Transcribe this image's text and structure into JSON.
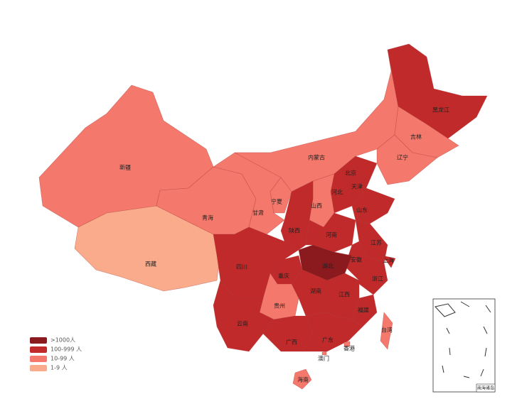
{
  "map": {
    "provinces": [
      {
        "name": "新疆",
        "color": "#f4796c"
      },
      {
        "name": "西藏",
        "color": "#f9ab8c"
      },
      {
        "name": "青海",
        "color": "#f4796c"
      },
      {
        "name": "甘肃",
        "color": "#f4796c"
      },
      {
        "name": "内蒙古",
        "color": "#f4796c"
      },
      {
        "name": "黑龙江",
        "color": "#c12a2a"
      },
      {
        "name": "吉林",
        "color": "#f4796c"
      },
      {
        "name": "辽宁",
        "color": "#f4796c"
      },
      {
        "name": "河北",
        "color": "#c12a2a"
      },
      {
        "name": "北京",
        "color": "#c12a2a"
      },
      {
        "name": "天津",
        "color": "#c12a2a"
      },
      {
        "name": "山西",
        "color": "#f4796c"
      },
      {
        "name": "宁夏",
        "color": "#f4796c"
      },
      {
        "name": "陕西",
        "color": "#c12a2a"
      },
      {
        "name": "山东",
        "color": "#c12a2a"
      },
      {
        "name": "河南",
        "color": "#c12a2a"
      },
      {
        "name": "江苏",
        "color": "#c12a2a"
      },
      {
        "name": "安徽",
        "color": "#c12a2a"
      },
      {
        "name": "上海",
        "color": "#c12a2a"
      },
      {
        "name": "湖北",
        "color": "#8b1a1e"
      },
      {
        "name": "四川",
        "color": "#c12a2a"
      },
      {
        "name": "重庆",
        "color": "#c12a2a"
      },
      {
        "name": "浙江",
        "color": "#c12a2a"
      },
      {
        "name": "湖南",
        "color": "#c12a2a"
      },
      {
        "name": "江西",
        "color": "#c12a2a"
      },
      {
        "name": "贵州",
        "color": "#f4796c"
      },
      {
        "name": "福建",
        "color": "#c12a2a"
      },
      {
        "name": "云南",
        "color": "#c12a2a"
      },
      {
        "name": "广西",
        "color": "#c12a2a"
      },
      {
        "name": "广东",
        "color": "#c12a2a"
      },
      {
        "name": "台湾",
        "color": "#f4796c"
      },
      {
        "name": "香港",
        "color": "#f4796c"
      },
      {
        "name": "澳门",
        "color": "#f4796c"
      },
      {
        "name": "海南",
        "color": "#f4796c"
      }
    ],
    "legend": [
      {
        "label": ">1000人",
        "color": "#8b1a1e"
      },
      {
        "label": "100-999 人",
        "color": "#c12a2a"
      },
      {
        "label": "10-99 人",
        "color": "#f4796c"
      },
      {
        "label": "1-9 人",
        "color": "#f9ab8c"
      }
    ],
    "inset_label": "南海诸岛"
  }
}
